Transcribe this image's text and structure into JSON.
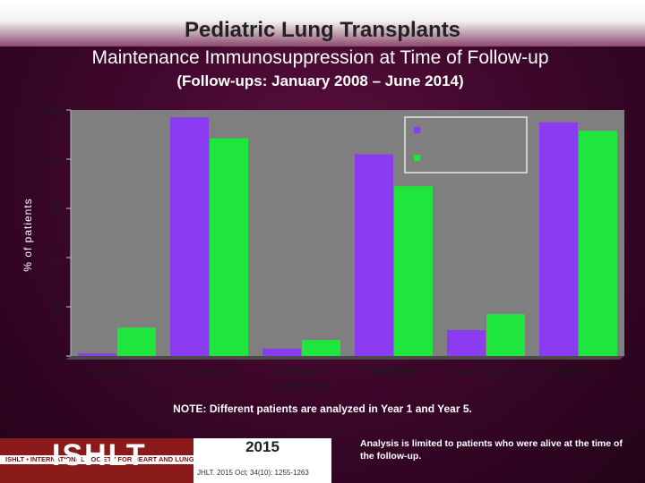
{
  "header": {
    "title": "Pediatric Lung Transplants",
    "subtitle": "Maintenance Immunosuppression at Time of Follow-up",
    "subsubtitle": "(Follow-ups: January 2008 – June 2014)"
  },
  "chart_data": {
    "type": "bar",
    "title": "",
    "xlabel": "",
    "ylabel": "% of patients",
    "ylim": [
      0,
      100
    ],
    "yticks": [
      "0",
      "20",
      "40",
      "60",
      "80",
      "100"
    ],
    "categories": [
      "Cyclosporine",
      "Tacrolimus",
      "Sirolimus/\nEverolimus",
      "MMF/MPA",
      "Azathioprine",
      "Prednisone"
    ],
    "series": [
      {
        "values": [
          1,
          97,
          3,
          82,
          10.5,
          95
        ],
        "color": "#8b3bf0"
      },
      {
        "values": [
          11.5,
          88.5,
          6.5,
          69,
          17,
          91.5
        ],
        "color": "#1ee63c"
      }
    ],
    "legend": {
      "placement": "top-right",
      "entries": [
        "",
        ""
      ]
    },
    "grid": false
  },
  "colors": {
    "background": "#3a0628",
    "plot_bg": "#808080",
    "series_1": "#8b3bf0",
    "series_2": "#1ee63c",
    "logo_red": "#8b1a1a"
  },
  "footer": {
    "note": "NOTE: Different patients are analyzed in Year 1 and Year 5.",
    "logo_text": "ISHLT",
    "logo_band": "ISHLT • INTERNATIONAL SOCIETY FOR HEART AND LUNG TRANSPLANTATION",
    "year": "2015",
    "citation": "JHLT. 2015 Oct; 34(10): 1255-1263",
    "analysis": "Analysis is limited to patients who were alive at the time of the follow-up."
  }
}
